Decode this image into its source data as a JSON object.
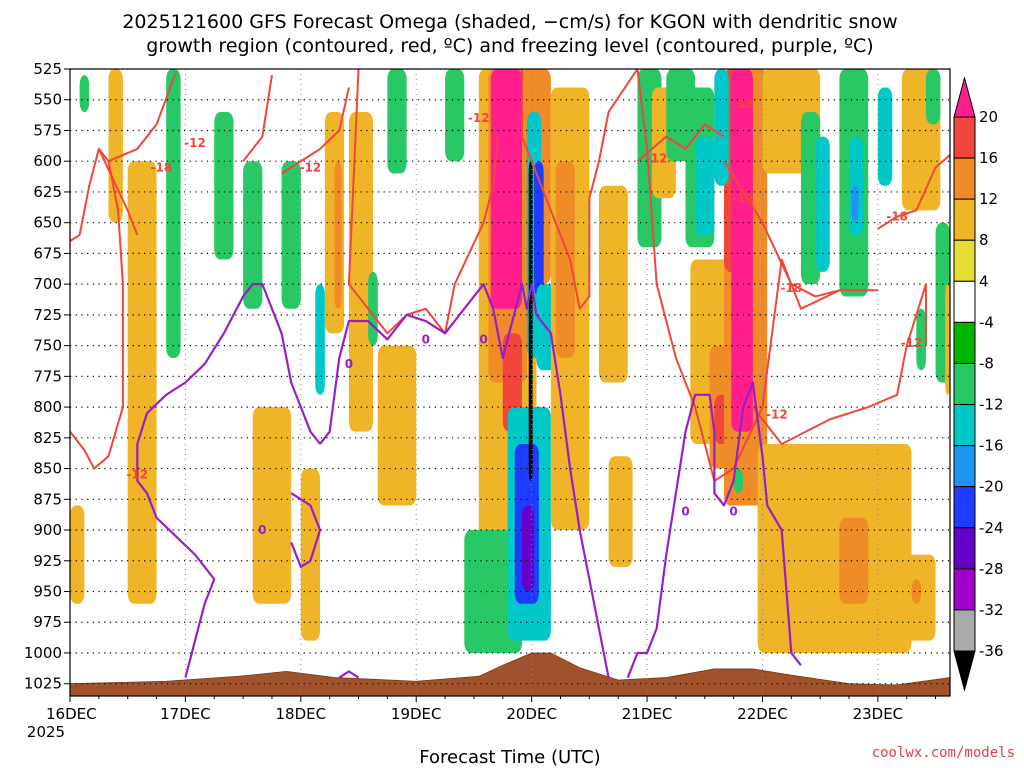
{
  "chart_data": {
    "type": "heatmap",
    "title_line1": "2025121600 GFS Forecast Omega (shaded, −cm/s) for KGON with dendritic snow",
    "title_line2": "growth region (contoured, red, ºC) and freezing level (contoured, purple, ºC)",
    "xlabel": "Forecast Time (UTC)",
    "credit": "coolwx.com/models",
    "x_ticks": [
      "16DEC",
      "17DEC",
      "18DEC",
      "19DEC",
      "20DEC",
      "21DEC",
      "22DEC",
      "23DEC"
    ],
    "x_year": "2025",
    "x_range_hours": [
      0,
      183
    ],
    "y_levels": [
      "525",
      "550",
      "575",
      "600",
      "625",
      "650",
      "675",
      "700",
      "725",
      "750",
      "775",
      "800",
      "825",
      "850",
      "875",
      "900",
      "925",
      "950",
      "975",
      "1000",
      "1025"
    ],
    "y_range_hpa": [
      525,
      1035
    ],
    "colorbar": {
      "ticks": [
        "20",
        "16",
        "12",
        "8",
        "4",
        "-4",
        "-8",
        "-12",
        "-16",
        "-20",
        "-24",
        "-28",
        "-32",
        "-36"
      ],
      "colors": [
        "#ff1e8c",
        "#f0463c",
        "#f08c28",
        "#f0b428",
        "#e6dc32",
        "#ffffff",
        "#00b400",
        "#28c864",
        "#00c8c8",
        "#1e96f0",
        "#1e3cff",
        "#6400c8",
        "#a000c8",
        "#aaaaaa"
      ]
    },
    "omega_blobs": [
      {
        "t0": 20,
        "t1": 23,
        "p0": 525,
        "p1": 760,
        "omega": -8
      },
      {
        "t0": 30,
        "t1": 34,
        "p0": 560,
        "p1": 680,
        "omega": -8
      },
      {
        "t0": 36,
        "t1": 40,
        "p0": 600,
        "p1": 720,
        "omega": -8
      },
      {
        "t0": 44,
        "t1": 48,
        "p0": 600,
        "p1": 720,
        "omega": -8
      },
      {
        "t0": 51,
        "t1": 53,
        "p0": 700,
        "p1": 790,
        "omega": -12
      },
      {
        "t0": 53,
        "t1": 57,
        "p0": 560,
        "p1": 740,
        "omega": 6
      },
      {
        "t0": 55,
        "t1": 56.5,
        "p0": 600,
        "p1": 720,
        "omega": 10
      },
      {
        "t0": 58,
        "t1": 63,
        "p0": 560,
        "p1": 820,
        "omega": 6
      },
      {
        "t0": 62,
        "t1": 64,
        "p0": 690,
        "p1": 750,
        "omega": -8
      },
      {
        "t0": 66,
        "t1": 70,
        "p0": 525,
        "p1": 610,
        "omega": -8
      },
      {
        "t0": 64,
        "t1": 72,
        "p0": 750,
        "p1": 880,
        "omega": 6
      },
      {
        "t0": 78,
        "t1": 82,
        "p0": 525,
        "p1": 600,
        "omega": -8
      },
      {
        "t0": 85,
        "t1": 97,
        "p0": 525,
        "p1": 960,
        "omega": 6
      },
      {
        "t0": 87,
        "t1": 95,
        "p0": 525,
        "p1": 780,
        "omega": 12
      },
      {
        "t0": 87.5,
        "t1": 94,
        "p0": 525,
        "p1": 720,
        "omega": 20
      },
      {
        "t0": 90,
        "t1": 94,
        "p0": 740,
        "p1": 820,
        "omega": 14
      },
      {
        "t0": 94,
        "t1": 100,
        "p0": 525,
        "p1": 700,
        "omega": 10
      },
      {
        "t0": 95,
        "t1": 98,
        "p0": 560,
        "p1": 760,
        "omega": -12
      },
      {
        "t0": 96.5,
        "t1": 98.5,
        "p0": 600,
        "p1": 710,
        "omega": -20
      },
      {
        "t0": 97,
        "t1": 101,
        "p0": 700,
        "p1": 770,
        "omega": -12
      },
      {
        "t0": 82,
        "t1": 94,
        "p0": 900,
        "p1": 1000,
        "omega": -8
      },
      {
        "t0": 91,
        "t1": 100,
        "p0": 800,
        "p1": 990,
        "omega": -12
      },
      {
        "t0": 92.5,
        "t1": 97.5,
        "p0": 830,
        "p1": 960,
        "omega": -20
      },
      {
        "t0": 94,
        "t1": 96.5,
        "p0": 880,
        "p1": 950,
        "omega": -26
      },
      {
        "t0": 95.4,
        "t1": 96.2,
        "p0": 600,
        "p1": 860,
        "omega": -36
      },
      {
        "t0": 100,
        "t1": 108,
        "p0": 540,
        "p1": 900,
        "omega": 6
      },
      {
        "t0": 101,
        "t1": 105,
        "p0": 600,
        "p1": 760,
        "omega": 10
      },
      {
        "t0": 110,
        "t1": 116,
        "p0": 620,
        "p1": 780,
        "omega": 6
      },
      {
        "t0": 112,
        "t1": 117,
        "p0": 840,
        "p1": 930,
        "omega": 6
      },
      {
        "t0": 118,
        "t1": 123,
        "p0": 525,
        "p1": 670,
        "omega": -8
      },
      {
        "t0": 121,
        "t1": 126,
        "p0": 540,
        "p1": 630,
        "omega": 6
      },
      {
        "t0": 124,
        "t1": 130,
        "p0": 525,
        "p1": 600,
        "omega": -8
      },
      {
        "t0": 128,
        "t1": 134,
        "p0": 540,
        "p1": 670,
        "omega": -8
      },
      {
        "t0": 130,
        "t1": 134,
        "p0": 580,
        "p1": 660,
        "omega": -12
      },
      {
        "t0": 129,
        "t1": 137,
        "p0": 680,
        "p1": 830,
        "omega": 6
      },
      {
        "t0": 133,
        "t1": 141,
        "p0": 680,
        "p1": 780,
        "omega": 6
      },
      {
        "t0": 133,
        "t1": 139,
        "p0": 750,
        "p1": 850,
        "omega": 10
      },
      {
        "t0": 134,
        "t1": 138,
        "p0": 790,
        "p1": 830,
        "omega": 14
      },
      {
        "t0": 136,
        "t1": 145,
        "p0": 525,
        "p1": 880,
        "omega": 10
      },
      {
        "t0": 136,
        "t1": 142,
        "p0": 525,
        "p1": 690,
        "omega": 14
      },
      {
        "t0": 137.5,
        "t1": 142,
        "p0": 525,
        "p1": 820,
        "omega": 20
      },
      {
        "t0": 134,
        "t1": 137,
        "p0": 525,
        "p1": 620,
        "omega": -12
      },
      {
        "t0": 138,
        "t1": 140,
        "p0": 850,
        "p1": 870,
        "omega": -8
      },
      {
        "t0": 144,
        "t1": 156,
        "p0": 525,
        "p1": 610,
        "omega": 6
      },
      {
        "t0": 152,
        "t1": 156,
        "p0": 560,
        "p1": 700,
        "omega": -8
      },
      {
        "t0": 155,
        "t1": 158,
        "p0": 580,
        "p1": 690,
        "omega": -12
      },
      {
        "t0": 160,
        "t1": 166,
        "p0": 525,
        "p1": 710,
        "omega": -8
      },
      {
        "t0": 162,
        "t1": 165,
        "p0": 580,
        "p1": 660,
        "omega": -12
      },
      {
        "t0": 162.5,
        "t1": 164,
        "p0": 620,
        "p1": 650,
        "omega": -16
      },
      {
        "t0": 168,
        "t1": 171,
        "p0": 540,
        "p1": 620,
        "omega": -12
      },
      {
        "t0": 173,
        "t1": 181,
        "p0": 525,
        "p1": 640,
        "omega": 6
      },
      {
        "t0": 178,
        "t1": 181,
        "p0": 525,
        "p1": 570,
        "omega": -8
      },
      {
        "t0": 176,
        "t1": 178,
        "p0": 720,
        "p1": 770,
        "omega": -8
      },
      {
        "t0": 180,
        "t1": 183,
        "p0": 650,
        "p1": 780,
        "omega": -8
      },
      {
        "t0": 182,
        "t1": 183,
        "p0": 700,
        "p1": 790,
        "omega": 6
      },
      {
        "t0": 143,
        "t1": 175,
        "p0": 830,
        "p1": 1000,
        "omega": 6
      },
      {
        "t0": 150,
        "t1": 172,
        "p0": 860,
        "p1": 990,
        "omega": 8
      },
      {
        "t0": 160,
        "t1": 166,
        "p0": 890,
        "p1": 960,
        "omega": 10
      },
      {
        "t0": 174,
        "t1": 180,
        "p0": 920,
        "p1": 990,
        "omega": 6
      },
      {
        "t0": 175,
        "t1": 177,
        "p0": 940,
        "p1": 960,
        "omega": 12
      },
      {
        "t0": 8,
        "t1": 11,
        "p0": 525,
        "p1": 650,
        "omega": 6
      },
      {
        "t0": 12,
        "t1": 18,
        "p0": 600,
        "p1": 960,
        "omega": 6
      },
      {
        "t0": 0,
        "t1": 3,
        "p0": 880,
        "p1": 960,
        "omega": 6
      },
      {
        "t0": 38,
        "t1": 46,
        "p0": 800,
        "p1": 960,
        "omega": 6
      },
      {
        "t0": 48,
        "t1": 52,
        "p0": 850,
        "p1": 990,
        "omega": 6
      },
      {
        "t0": 2,
        "t1": 4,
        "p0": 530,
        "p1": 560,
        "omega": -8
      }
    ],
    "terrain_surface_hpa": [
      [
        0,
        1025
      ],
      [
        20,
        1023
      ],
      [
        35,
        1019
      ],
      [
        45,
        1015
      ],
      [
        55,
        1020
      ],
      [
        72,
        1023
      ],
      [
        85,
        1019
      ],
      [
        90,
        1010
      ],
      [
        96,
        1000
      ],
      [
        100,
        1000
      ],
      [
        106,
        1012
      ],
      [
        114,
        1022
      ],
      [
        124,
        1020
      ],
      [
        134,
        1013
      ],
      [
        142,
        1013
      ],
      [
        150,
        1018
      ],
      [
        162,
        1025
      ],
      [
        172,
        1026
      ],
      [
        183,
        1020
      ]
    ],
    "contours_red_minus12": [
      [
        [
          0,
          820
        ],
        [
          3,
          835
        ],
        [
          5,
          850
        ],
        [
          8,
          840
        ],
        [
          11,
          800
        ],
        [
          11,
          700
        ],
        [
          10,
          640
        ],
        [
          8,
          600
        ],
        [
          6,
          590
        ],
        [
          4,
          620
        ],
        [
          2,
          660
        ],
        [
          0,
          665
        ]
      ],
      [
        [
          8,
          600
        ],
        [
          14,
          590
        ],
        [
          18,
          570
        ],
        [
          22,
          528
        ]
      ],
      [
        [
          36,
          600
        ],
        [
          40,
          580
        ],
        [
          42,
          530
        ]
      ],
      [
        [
          44,
          610
        ],
        [
          52,
          590
        ],
        [
          56,
          575
        ],
        [
          58,
          540
        ]
      ],
      [
        [
          60,
          525
        ],
        [
          58,
          700
        ],
        [
          62,
          720
        ],
        [
          66,
          740
        ],
        [
          70,
          725
        ],
        [
          74,
          720
        ],
        [
          78,
          740
        ],
        [
          80,
          700
        ],
        [
          86,
          650
        ],
        [
          88,
          620
        ],
        [
          89,
          580
        ]
      ],
      [
        [
          94,
          525
        ],
        [
          94,
          580
        ],
        [
          100,
          640
        ],
        [
          104,
          680
        ],
        [
          106,
          720
        ],
        [
          108,
          710
        ],
        [
          108,
          630
        ],
        [
          110,
          600
        ],
        [
          112,
          560
        ],
        [
          118,
          525
        ]
      ],
      [
        [
          118,
          600
        ],
        [
          124,
          580
        ],
        [
          128,
          590
        ],
        [
          132,
          570
        ],
        [
          136,
          580
        ]
      ],
      [
        [
          136,
          600
        ],
        [
          140,
          625
        ],
        [
          144,
          650
        ],
        [
          150,
          700
        ],
        [
          155,
          710
        ],
        [
          160,
          705
        ],
        [
          168,
          705
        ]
      ],
      [
        [
          168,
          655
        ],
        [
          172,
          645
        ],
        [
          176,
          640
        ],
        [
          180,
          605
        ],
        [
          183,
          595
        ]
      ],
      [
        [
          142,
          800
        ],
        [
          148,
          830
        ],
        [
          158,
          810
        ],
        [
          166,
          800
        ],
        [
          172,
          790
        ],
        [
          174,
          750
        ],
        [
          178,
          700
        ],
        [
          178,
          750
        ]
      ]
    ],
    "contours_red_minus18": [
      [
        [
          6,
          590
        ],
        [
          12,
          640
        ],
        [
          14,
          660
        ]
      ],
      [
        [
          118,
          525
        ],
        [
          120,
          590
        ],
        [
          122,
          700
        ],
        [
          126,
          760
        ],
        [
          130,
          800
        ],
        [
          134,
          860
        ],
        [
          138,
          850
        ],
        [
          144,
          800
        ],
        [
          148,
          680
        ],
        [
          150,
          700
        ],
        [
          152,
          720
        ],
        [
          160,
          705
        ]
      ]
    ],
    "contours_purple_zero": [
      [
        [
          24,
          1020
        ],
        [
          26,
          990
        ],
        [
          28,
          960
        ],
        [
          30,
          940
        ],
        [
          26,
          920
        ],
        [
          22,
          905
        ],
        [
          18,
          890
        ],
        [
          16,
          870
        ],
        [
          14,
          860
        ],
        [
          14,
          830
        ],
        [
          16,
          805
        ],
        [
          20,
          790
        ],
        [
          24,
          780
        ],
        [
          28,
          765
        ],
        [
          32,
          740
        ],
        [
          34,
          725
        ],
        [
          36,
          710
        ],
        [
          38,
          700
        ],
        [
          40,
          700
        ],
        [
          42,
          720
        ],
        [
          44,
          740
        ],
        [
          46,
          780
        ],
        [
          48,
          800
        ],
        [
          50,
          820
        ],
        [
          52,
          830
        ]
      ],
      [
        [
          52,
          830
        ],
        [
          54,
          820
        ],
        [
          56,
          760
        ],
        [
          58,
          730
        ],
        [
          62,
          730
        ],
        [
          66,
          745
        ],
        [
          70,
          725
        ],
        [
          74,
          730
        ],
        [
          78,
          740
        ],
        [
          82,
          720
        ],
        [
          86,
          700
        ],
        [
          88,
          720
        ],
        [
          90,
          760
        ],
        [
          92,
          730
        ],
        [
          94,
          700
        ],
        [
          95,
          720
        ],
        [
          96,
          700
        ],
        [
          97,
          725
        ],
        [
          100,
          740
        ],
        [
          102,
          790
        ],
        [
          104,
          850
        ],
        [
          106,
          900
        ],
        [
          108,
          940
        ],
        [
          110,
          980
        ],
        [
          112,
          1020
        ]
      ],
      [
        [
          116,
          1020
        ],
        [
          118,
          1000
        ],
        [
          120,
          1000
        ],
        [
          122,
          980
        ],
        [
          124,
          920
        ],
        [
          126,
          870
        ],
        [
          128,
          820
        ],
        [
          130,
          790
        ],
        [
          133,
          790
        ],
        [
          134,
          820
        ],
        [
          134,
          870
        ],
        [
          136,
          880
        ],
        [
          138,
          860
        ],
        [
          140,
          800
        ],
        [
          142,
          780
        ],
        [
          144,
          840
        ],
        [
          145,
          880
        ],
        [
          148,
          900
        ],
        [
          150,
          1000
        ],
        [
          152,
          1010
        ]
      ],
      [
        [
          46,
          870
        ],
        [
          50,
          880
        ],
        [
          52,
          900
        ],
        [
          50,
          925
        ],
        [
          48,
          930
        ],
        [
          46,
          910
        ]
      ],
      [
        [
          56,
          1020
        ],
        [
          58,
          1015
        ],
        [
          60,
          1020
        ]
      ]
    ],
    "contour_labels": [
      {
        "t": 14,
        "p": 855,
        "text": "-12",
        "color": "red"
      },
      {
        "t": 19,
        "p": 605,
        "text": "-18",
        "color": "red"
      },
      {
        "t": 26,
        "p": 585,
        "text": "-12",
        "color": "red"
      },
      {
        "t": 50,
        "p": 605,
        "text": "-12",
        "color": "red"
      },
      {
        "t": 85,
        "p": 565,
        "text": "-12",
        "color": "red"
      },
      {
        "t": 122,
        "p": 598,
        "text": "-12",
        "color": "red"
      },
      {
        "t": 140,
        "p": 553,
        "text": "-18",
        "color": "red"
      },
      {
        "t": 140,
        "p": 630,
        "text": "-12",
        "color": "red"
      },
      {
        "t": 150,
        "p": 703,
        "text": "-18",
        "color": "red"
      },
      {
        "t": 172,
        "p": 645,
        "text": "-18",
        "color": "red"
      },
      {
        "t": 175,
        "p": 748,
        "text": "-12",
        "color": "red"
      },
      {
        "t": 147,
        "p": 806,
        "text": "-12",
        "color": "red"
      },
      {
        "t": 40,
        "p": 900,
        "text": "0",
        "color": "purple"
      },
      {
        "t": 58,
        "p": 765,
        "text": "0",
        "color": "purple"
      },
      {
        "t": 74,
        "p": 745,
        "text": "0",
        "color": "purple"
      },
      {
        "t": 86,
        "p": 745,
        "text": "0",
        "color": "purple"
      },
      {
        "t": 128,
        "p": 885,
        "text": "0",
        "color": "purple"
      },
      {
        "t": 138,
        "p": 885,
        "text": "0",
        "color": "purple"
      }
    ]
  }
}
